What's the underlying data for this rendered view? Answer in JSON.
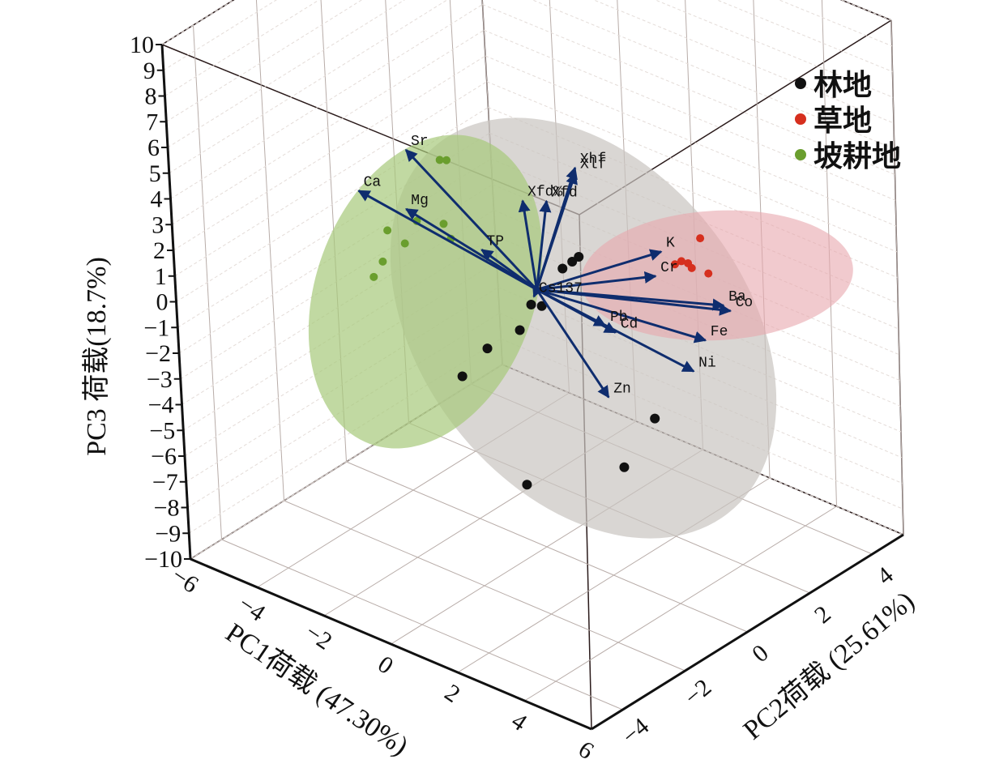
{
  "chart_data": {
    "type": "scatter",
    "subtype": "3d-pca-biplot",
    "title": "",
    "xlabel": "PC1荷载 (47.30%)",
    "ylabel": "PC2荷载 (25.61%)",
    "zlabel": "PC3 荷载(18.7%)",
    "xlim": [
      -6,
      6
    ],
    "ylim": [
      -5,
      5
    ],
    "zlim": [
      -10,
      10
    ],
    "x_ticks": [
      "−6",
      "−4",
      "−2",
      "0",
      "2",
      "4",
      "6"
    ],
    "y_ticks": [
      "−4",
      "−2",
      "0",
      "2",
      "4"
    ],
    "z_ticks": [
      "10",
      "9",
      "8",
      "7",
      "6",
      "5",
      "4",
      "3",
      "2",
      "1",
      "0",
      "−1",
      "−2",
      "−3",
      "−4",
      "−5",
      "−6",
      "−7",
      "−8",
      "−9",
      "−10"
    ],
    "grid": true,
    "legend_position": "top-right",
    "groups": [
      {
        "name": "林地",
        "color": "#111111",
        "ellipse_color": "#c9c5c0",
        "points": [
          {
            "x": 0.6,
            "y": 0.2,
            "z": 1.0
          },
          {
            "x": 0.8,
            "y": 0.3,
            "z": 1.3
          },
          {
            "x": 1.0,
            "y": 0.3,
            "z": 1.6
          },
          {
            "x": 0.7,
            "y": -0.6,
            "z": 0.2
          },
          {
            "x": 0.4,
            "y": -1.0,
            "z": -0.6
          },
          {
            "x": -0.4,
            "y": -1.2,
            "z": -1.6
          },
          {
            "x": -0.8,
            "y": -1.6,
            "z": -2.6
          },
          {
            "x": 3.2,
            "y": 0.2,
            "z": -3.4
          },
          {
            "x": 3.0,
            "y": -0.6,
            "z": -4.8
          },
          {
            "x": 1.4,
            "y": -2.0,
            "z": -5.3
          },
          {
            "x": 0.1,
            "y": -0.3,
            "z": -0.3
          }
        ]
      },
      {
        "name": "草地",
        "color": "#d62f1e",
        "ellipse_color": "#e8a6ae",
        "points": [
          {
            "x": 3.2,
            "y": 1.8,
            "z": 2.4
          },
          {
            "x": 3.0,
            "y": 1.4,
            "z": 1.7
          },
          {
            "x": 2.9,
            "y": 1.3,
            "z": 1.6
          },
          {
            "x": 3.1,
            "y": 1.5,
            "z": 1.6
          },
          {
            "x": 3.3,
            "y": 1.4,
            "z": 1.6
          },
          {
            "x": 3.6,
            "y": 1.6,
            "z": 1.4
          }
        ]
      },
      {
        "name": "坡耕地",
        "color": "#6a9e2e",
        "ellipse_color": "#a6c97a",
        "points": [
          {
            "x": -3.2,
            "y": 0.5,
            "z": 2.9
          },
          {
            "x": -3.0,
            "y": 0.5,
            "z": 3.0
          },
          {
            "x": -3.3,
            "y": -0.2,
            "z": 1.0
          },
          {
            "x": -2.6,
            "y": -0.1,
            "z": 1.2
          },
          {
            "x": -2.5,
            "y": 0.0,
            "z": 0.6
          },
          {
            "x": -4.0,
            "y": -0.4,
            "z": 0.4
          },
          {
            "x": -3.4,
            "y": -0.5,
            "z": 0.3
          },
          {
            "x": -3.8,
            "y": -0.8,
            "z": -0.4
          },
          {
            "x": -3.9,
            "y": -1.0,
            "z": -0.9
          }
        ]
      }
    ],
    "loadings": [
      {
        "name": "Xhf",
        "x": 0.8,
        "y": 0.5,
        "z": 4.8
      },
      {
        "name": "Xlf",
        "x": 0.8,
        "y": 0.5,
        "z": 4.6
      },
      {
        "name": "Xfd",
        "x": 0.2,
        "y": 0.2,
        "z": 3.4
      },
      {
        "name": "Xfd%",
        "x": -0.6,
        "y": 0.3,
        "z": 2.9
      },
      {
        "name": "Sr",
        "x": -4.0,
        "y": 0.3,
        "z": 3.0
      },
      {
        "name": "Ca",
        "x": -4.8,
        "y": -0.4,
        "z": 1.5
      },
      {
        "name": "Mg",
        "x": -3.6,
        "y": -0.2,
        "z": 1.3
      },
      {
        "name": "TP",
        "x": -1.5,
        "y": -0.1,
        "z": 0.8
      },
      {
        "name": "K",
        "x": 2.6,
        "y": 1.2,
        "z": 2.0
      },
      {
        "name": "Cr",
        "x": 2.6,
        "y": 1.0,
        "z": 1.2
      },
      {
        "name": "Ba",
        "x": 4.4,
        "y": 1.2,
        "z": 0.9
      },
      {
        "name": "Co",
        "x": 4.6,
        "y": 1.2,
        "z": 0.8
      },
      {
        "name": "Fe",
        "x": 4.4,
        "y": 0.6,
        "z": 0.0
      },
      {
        "name": "Pb",
        "x": 2.0,
        "y": 0.0,
        "z": -0.3
      },
      {
        "name": "Cd",
        "x": 2.3,
        "y": 0.0,
        "z": -0.4
      },
      {
        "name": "Ni",
        "x": 4.4,
        "y": 0.2,
        "z": -0.9
      },
      {
        "name": "Zn",
        "x": 2.6,
        "y": -0.6,
        "z": -2.3
      },
      {
        "name": "Cs137",
        "x": 0.0,
        "y": -0.1,
        "z": -0.2
      }
    ],
    "loading_color": "#0f2d6e"
  }
}
